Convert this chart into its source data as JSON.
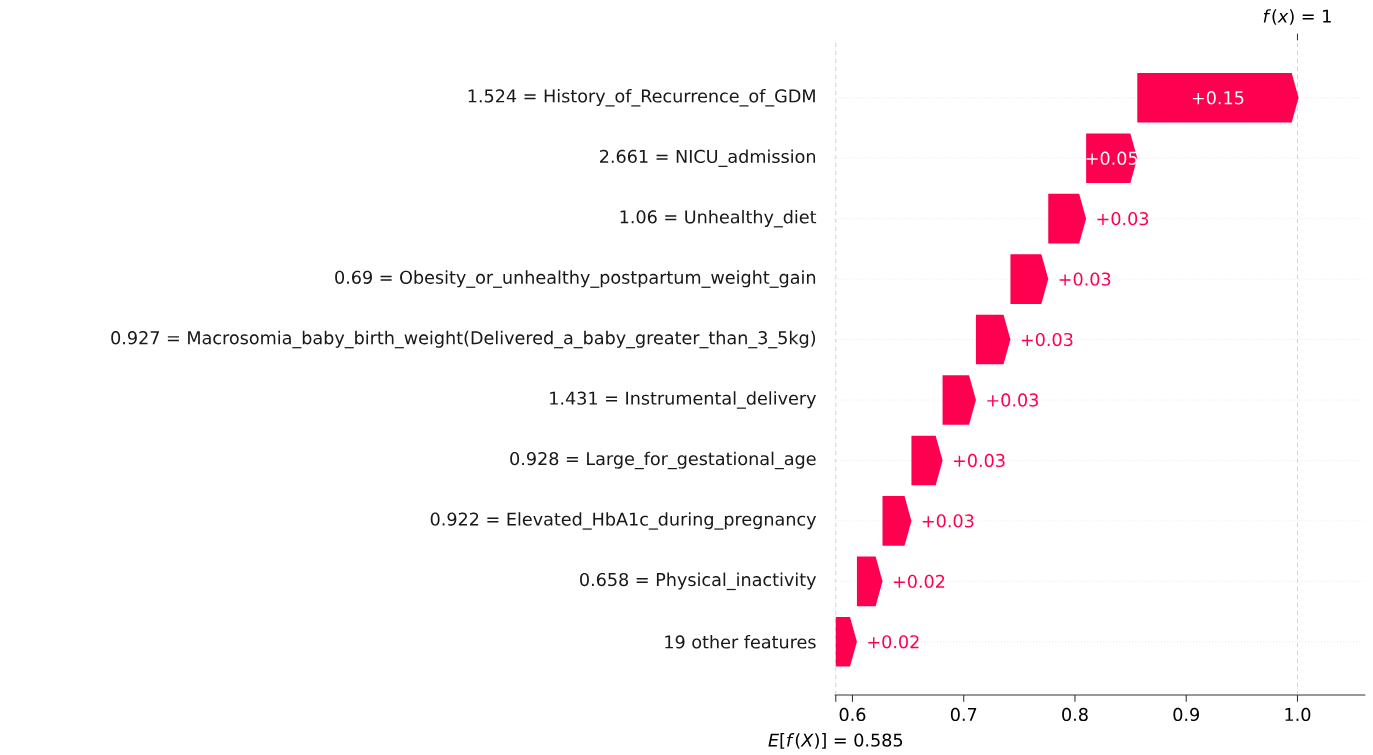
{
  "chart_data": {
    "type": "bar",
    "orientation": "horizontal",
    "categories": [
      "1.524 = History_of_Recurrence_of_GDM",
      "2.661 = NICU_admission",
      "1.06 = Unhealthy_diet",
      "0.69 = Obesity_or_unhealthy_postpartum_weight_gain",
      "0.927 = Macrosomia_baby_birth_weight(Delivered_a_baby_greater_than_3_5kg)",
      "1.431 = Instrumental_delivery",
      "0.928 = Large_for_gestational_age",
      "0.922 = Elevated_HbA1c_during_pregnancy",
      "0.658 = Physical_inactivity",
      "19 other features"
    ],
    "values": [
      0.145,
      0.046,
      0.034,
      0.034,
      0.031,
      0.03,
      0.028,
      0.026,
      0.023,
      0.019
    ],
    "base": [
      0.856,
      0.81,
      0.776,
      0.742,
      0.711,
      0.681,
      0.653,
      0.627,
      0.604,
      0.585
    ],
    "value_labels": [
      "+0.15",
      "+0.05",
      "+0.03",
      "+0.03",
      "+0.03",
      "+0.03",
      "+0.03",
      "+0.03",
      "+0.02",
      "+0.02"
    ],
    "color": "#ff0051",
    "xlim": [
      0.584,
      1.061
    ],
    "xticks": [
      0.6,
      0.7,
      0.8,
      0.9,
      {
        "value": 1.0,
        "label": "1.0"
      }
    ],
    "grid": "y",
    "ref_lines": [
      {
        "axis": "x",
        "value": 1.0,
        "label": "*f*(*x*) = 1",
        "color": "#bbbbbb",
        "line_style": "dashed"
      },
      {
        "axis": "x",
        "value": 0.585,
        "label": "*E*[*f*(*X*)] = 0.585",
        "color": "#bbbbbb",
        "line_style": "dashed"
      }
    ]
  }
}
